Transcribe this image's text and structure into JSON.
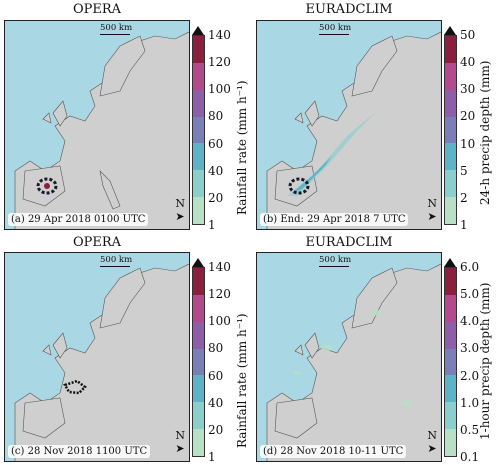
{
  "panels": [
    {
      "title": "OPERA",
      "caption": "(a) 29 Apr 2018 0100 UTC",
      "scale": "500 km",
      "north": "N"
    },
    {
      "title": "EURADCLIM",
      "caption": "(b) End: 29 Apr 2018 7 UTC",
      "scale": "500 km",
      "north": "N"
    },
    {
      "title": "OPERA",
      "caption": "(c) 28 Nov 2018 1100 UTC",
      "scale": "500 km",
      "north": "N"
    },
    {
      "title": "EURADCLIM",
      "caption": "(d) 28 Nov 2018 10-11 UTC",
      "scale": "500 km",
      "north": "N"
    }
  ],
  "colorbars": [
    {
      "label": "Rainfall rate (mm h⁻¹)",
      "ticks": [
        "140",
        "120",
        "100",
        "80",
        "60",
        "40",
        "20",
        "1"
      ]
    },
    {
      "label": "24-h precip depth (mm)",
      "ticks": [
        "50",
        "40",
        "30",
        "20",
        "10",
        "5",
        "2",
        "1"
      ]
    },
    {
      "label": "Rainfall rate (mm h⁻¹)",
      "ticks": [
        "140",
        "120",
        "100",
        "80",
        "60",
        "40",
        "20",
        "1"
      ]
    },
    {
      "label": "1-hour precip depth (mm)",
      "ticks": [
        "6.0",
        "5.0",
        "4.0",
        "3.0",
        "2.0",
        "1.0",
        "0.5",
        "0.1"
      ]
    }
  ],
  "colors": {
    "sea": "#a9d8e4",
    "land": "#cfcfcf",
    "colormap": [
      "#e6f3d6",
      "#b7e0c4",
      "#8bcfcc",
      "#5fb3c8",
      "#7b7fb7",
      "#8e5ea8",
      "#b24a8c",
      "#8a1f3e"
    ]
  }
}
